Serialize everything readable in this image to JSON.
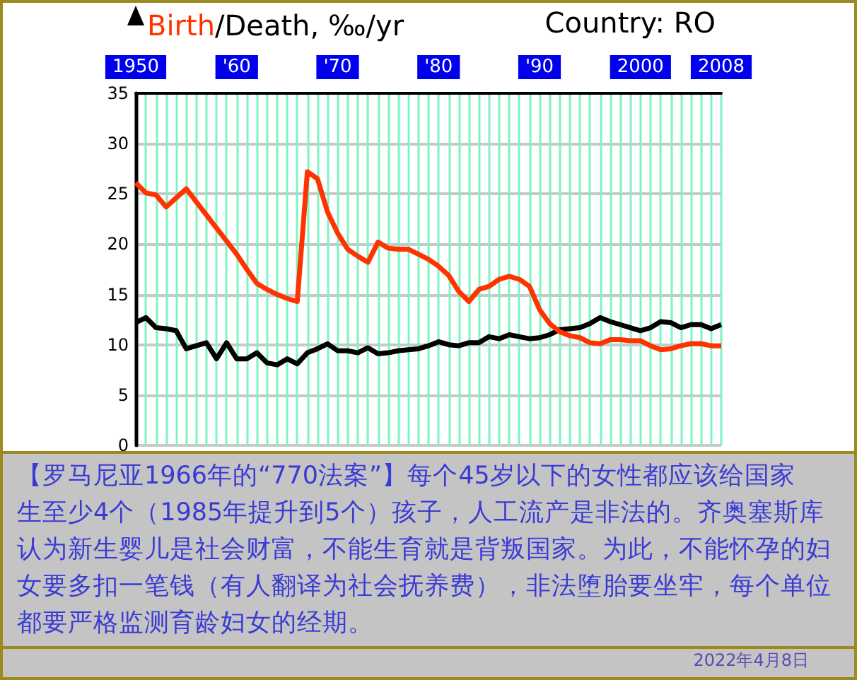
{
  "chart_data": {
    "type": "line",
    "title": "Country: RO",
    "ylabel": "Birth/Death, ‰/yr",
    "x": [
      1950,
      1951,
      1952,
      1953,
      1954,
      1955,
      1956,
      1957,
      1958,
      1959,
      1960,
      1961,
      1962,
      1963,
      1964,
      1965,
      1966,
      1967,
      1968,
      1969,
      1970,
      1971,
      1972,
      1973,
      1974,
      1975,
      1976,
      1977,
      1978,
      1979,
      1980,
      1981,
      1982,
      1983,
      1984,
      1985,
      1986,
      1987,
      1988,
      1989,
      1990,
      1991,
      1992,
      1993,
      1994,
      1995,
      1996,
      1997,
      1998,
      1999,
      2000,
      2001,
      2002,
      2003,
      2004,
      2005,
      2006,
      2007,
      2008
    ],
    "series": [
      {
        "color": "#ff3300",
        "values": [
          26.1,
          25.1,
          24.9,
          23.7,
          24.6,
          25.5,
          24.2,
          22.9,
          21.6,
          20.3,
          19.0,
          17.5,
          16.1,
          15.5,
          15.0,
          14.6,
          14.3,
          27.2,
          26.5,
          23.2,
          21.1,
          19.5,
          18.8,
          18.2,
          20.2,
          19.6,
          19.5,
          19.5,
          19.0,
          18.5,
          17.8,
          16.9,
          15.3,
          14.3,
          15.5,
          15.8,
          16.5,
          16.8,
          16.5,
          15.8,
          13.5,
          12.1,
          11.3,
          10.9,
          10.7,
          10.2,
          10.1,
          10.5,
          10.5,
          10.4,
          10.4,
          9.9,
          9.5,
          9.6,
          9.9,
          10.1,
          10.1,
          9.9,
          9.9
        ]
      },
      {
        "color": "#000000",
        "values": [
          12.2,
          12.7,
          11.7,
          11.6,
          11.4,
          9.6,
          9.9,
          10.2,
          8.6,
          10.2,
          8.6,
          8.6,
          9.2,
          8.2,
          8.0,
          8.6,
          8.1,
          9.2,
          9.6,
          10.1,
          9.4,
          9.4,
          9.2,
          9.7,
          9.1,
          9.2,
          9.4,
          9.5,
          9.6,
          9.9,
          10.3,
          10.0,
          9.9,
          10.2,
          10.2,
          10.8,
          10.6,
          11.0,
          10.8,
          10.6,
          10.7,
          11.0,
          11.5,
          11.6,
          11.7,
          12.1,
          12.7,
          12.3,
          12.0,
          11.7,
          11.4,
          11.7,
          12.3,
          12.2,
          11.7,
          12.0,
          12.0,
          11.6,
          12.0
        ]
      }
    ],
    "xlim": [
      1950,
      2008
    ],
    "xticks": [
      1950,
      {
        "value": 1960,
        "label": "'60"
      },
      {
        "value": 1970,
        "label": "'70"
      },
      {
        "value": 1980,
        "label": "'80"
      },
      {
        "value": 1990,
        "label": "'90"
      },
      2000,
      2008
    ],
    "ylim": [
      0,
      35
    ],
    "yticks": [
      0,
      5,
      10,
      15,
      20,
      25,
      30,
      35
    ],
    "grid": true,
    "marker": "none",
    "line_style": "solid",
    "annotations": [
      "【罗马尼亚1966年的“770法案”】每个45岁以下的女性都应该给国家生至少4个（1985年提升到5个）孩子，人工流产是非法的。齐奥塞斯库认为新生婴儿是社会财富，不能生育就是背叛国家。为此，不能怀孕的妇女要多扣一笔钱（有人翻译为社会抚养费），非法堕胎要坐牢，每个单位都要严格监测育龄妇女的经期。",
      "2022年4月8日"
    ]
  }
}
